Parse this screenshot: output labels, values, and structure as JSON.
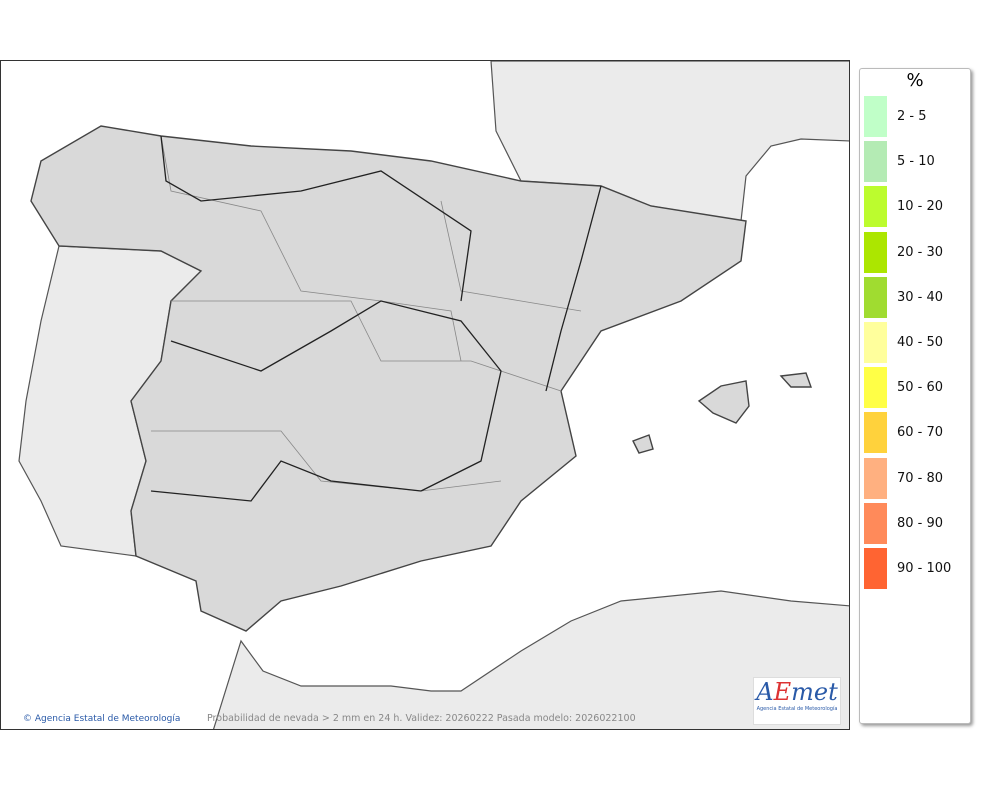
{
  "map": {
    "credit": "Agencia Estatal de Meteorología",
    "caption": "Probabilidad de nevada > 2 mm en 24 h. Validez: 20260222 Pasada modelo: 2026022100",
    "logo": {
      "text": "AEmet",
      "subtitle": "Agencia Estatal de Meteorología"
    }
  },
  "legend": {
    "title": "%",
    "items": [
      {
        "label": "2 - 5",
        "color": "#c0ffc8"
      },
      {
        "label": "5 - 10",
        "color": "#b4ebb4"
      },
      {
        "label": "10 - 20",
        "color": "#bcfc2e"
      },
      {
        "label": "20 - 30",
        "color": "#ace600"
      },
      {
        "label": "30 - 40",
        "color": "#a0dc30"
      },
      {
        "label": "40 - 50",
        "color": "#ffff9c"
      },
      {
        "label": "50 - 60",
        "color": "#ffff46"
      },
      {
        "label": "60 - 70",
        "color": "#ffd23c"
      },
      {
        "label": "70 - 80",
        "color": "#ffb080"
      },
      {
        "label": "80 - 90",
        "color": "#ff8a5a"
      },
      {
        "label": "90 - 100",
        "color": "#ff6432"
      }
    ]
  }
}
